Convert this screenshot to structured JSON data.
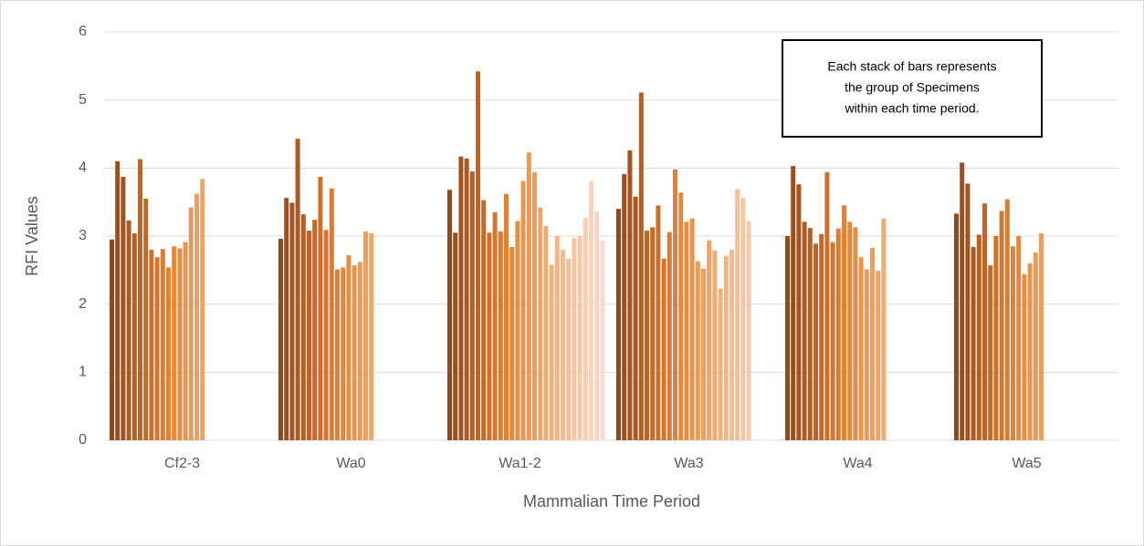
{
  "chart_data": {
    "type": "bar",
    "categories": [
      "Cf2-3",
      "Wa0",
      "Wa1-2",
      "Wa3",
      "Wa4",
      "Wa5"
    ],
    "values": [
      [
        2.95,
        4.1,
        3.87,
        3.23,
        3.04,
        4.13,
        3.55,
        2.8,
        2.69,
        2.81,
        2.54,
        2.85,
        2.82,
        2.91,
        3.42,
        3.62,
        3.84
      ],
      [
        2.96,
        3.56,
        3.49,
        4.43,
        3.32,
        3.08,
        3.24,
        3.87,
        3.09,
        3.7,
        2.51,
        2.54,
        2.72,
        2.57,
        2.62,
        3.07,
        3.04
      ],
      [
        3.68,
        3.05,
        4.17,
        4.14,
        3.95,
        5.42,
        3.53,
        3.05,
        3.35,
        3.07,
        3.62,
        2.84,
        3.22,
        3.81,
        4.23,
        3.94,
        3.42,
        3.15,
        2.58,
        3.0,
        2.8,
        2.67,
        2.97,
        3.0,
        3.27,
        3.81,
        3.36,
        2.93
      ],
      [
        3.4,
        3.91,
        4.26,
        3.58,
        5.11,
        3.08,
        3.13,
        3.45,
        2.67,
        3.06,
        3.98,
        3.64,
        3.21,
        3.26,
        2.63,
        2.52,
        2.94,
        2.79,
        2.23,
        2.71,
        2.8,
        3.69,
        3.56,
        3.22
      ],
      [
        3.0,
        4.03,
        3.76,
        3.21,
        3.12,
        2.89,
        3.03,
        3.94,
        2.91,
        3.11,
        3.45,
        3.21,
        3.13,
        2.69,
        2.51,
        2.83,
        2.49,
        3.26
      ],
      [
        3.33,
        4.08,
        3.77,
        2.84,
        3.02,
        3.48,
        2.57,
        3.0,
        3.37,
        3.54,
        2.85,
        3.0,
        2.44,
        2.6,
        2.76,
        3.04
      ]
    ],
    "colors": [
      "#8e4a1d",
      "#98501f",
      "#a25521",
      "#ab5a22",
      "#b45f24",
      "#bd6426",
      "#c66a28",
      "#cd702c",
      "#d4762f",
      "#da7c33",
      "#df8238",
      "#e3883e",
      "#e78e45",
      "#ea944c",
      "#ec9a54",
      "#ee9f5c",
      "#efa565",
      "#f0ab6f",
      "#f1b17a",
      "#f2b685",
      "#f3bb8f",
      "#f4c099",
      "#f5c5a3",
      "#f6caac",
      "#f6cfb5",
      "#f7d3bd",
      "#f7d7c4",
      "#f8dbcb"
    ],
    "ylim": [
      0,
      6
    ],
    "yticks": [
      0,
      1,
      2,
      3,
      4,
      5,
      6
    ],
    "grid": true,
    "y_label": "RFI Values",
    "x_label": "Mammalian Time Period",
    "annotation": [
      "Each stack of bars represents",
      "the group of Specimens",
      "within each time period."
    ]
  }
}
